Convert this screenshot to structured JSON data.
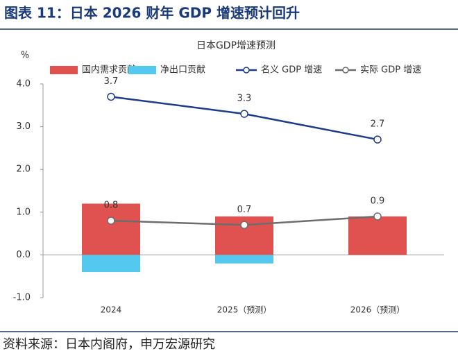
{
  "header": {
    "title": "图表 11：日本 2026 财年 GDP 增速预计回升"
  },
  "chart_data": {
    "type": "bar-line",
    "title": "日本GDP增速预测",
    "y_unit": "%",
    "categories": [
      "2024",
      "2025（预测）",
      "2026（预测）"
    ],
    "series": [
      {
        "name": "国内需求贡献",
        "kind": "bar",
        "color": "#e0524f",
        "values": [
          1.2,
          0.9,
          0.9
        ]
      },
      {
        "name": "净出口贡献",
        "kind": "bar",
        "color": "#55c8ef",
        "values": [
          -0.4,
          -0.2,
          0
        ]
      },
      {
        "name": "名义 GDP 增速",
        "kind": "line",
        "color": "#1d3c8c",
        "values": [
          3.7,
          3.3,
          2.7
        ],
        "show_labels": true
      },
      {
        "name": "实际 GDP 增速",
        "kind": "line",
        "color": "#6d6d6d",
        "values": [
          0.8,
          0.7,
          0.9
        ],
        "show_labels": true
      }
    ],
    "ylim": [
      -1.0,
      4.0
    ],
    "yticks": [
      {
        "value": -1,
        "label": "-1.0"
      },
      {
        "value": 0,
        "label": "0.0"
      },
      {
        "value": 1,
        "label": "1.0"
      },
      {
        "value": 2,
        "label": "2.0"
      },
      {
        "value": 3,
        "label": "3.0"
      },
      {
        "value": 4,
        "label": "4.0"
      }
    ],
    "grid": false
  },
  "footer": {
    "source": "资料来源：日本内阁府，申万宏源研究"
  }
}
